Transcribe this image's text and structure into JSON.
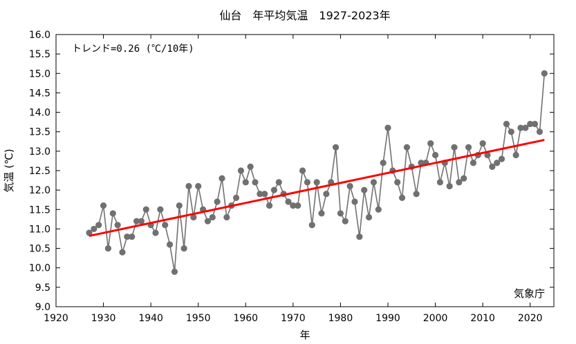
{
  "chart_data": {
    "type": "line",
    "title": "仙台　年平均気温　1927-2023年",
    "xlabel": "年",
    "ylabel": "気温 (℃)",
    "xlim": [
      1920,
      2025
    ],
    "ylim": [
      9.0,
      16.0
    ],
    "xticks": [
      1920,
      1930,
      1940,
      1950,
      1960,
      1970,
      1980,
      1990,
      2000,
      2010,
      2020
    ],
    "yticks": [
      "9.0",
      "9.5",
      "10.0",
      "10.5",
      "11.0",
      "11.5",
      "12.0",
      "12.5",
      "13.0",
      "13.5",
      "14.0",
      "14.5",
      "15.0",
      "15.5",
      "16.0"
    ],
    "grid": false,
    "annotation": "トレンド=0.26 (℃/10年)",
    "source": "気象庁",
    "colors": {
      "series": "#707070",
      "trend": "#ff0000"
    },
    "series": [
      {
        "x": [
          1927,
          1928,
          1929,
          1930,
          1931,
          1932,
          1933,
          1934,
          1935,
          1936,
          1937,
          1938,
          1939,
          1940,
          1941,
          1942,
          1943,
          1944,
          1945,
          1946,
          1947,
          1948,
          1949,
          1950,
          1951,
          1952,
          1953,
          1954,
          1955,
          1956,
          1957,
          1958,
          1959,
          1960,
          1961,
          1962,
          1963,
          1964,
          1965,
          1966,
          1967,
          1968,
          1969,
          1970,
          1971,
          1972,
          1973,
          1974,
          1975,
          1976,
          1977,
          1978,
          1979,
          1980,
          1981,
          1982,
          1983,
          1984,
          1985,
          1986,
          1987,
          1988,
          1989,
          1990,
          1991,
          1992,
          1993,
          1994,
          1995,
          1996,
          1997,
          1998,
          1999,
          2000,
          2001,
          2002,
          2003,
          2004,
          2005,
          2006,
          2007,
          2008,
          2009,
          2010,
          2011,
          2012,
          2013,
          2014,
          2015,
          2016,
          2017,
          2018,
          2019,
          2020,
          2021,
          2022,
          2023
        ],
        "y": [
          10.9,
          11.0,
          11.1,
          11.6,
          10.5,
          11.4,
          11.1,
          10.4,
          10.8,
          10.8,
          11.2,
          11.2,
          11.5,
          11.1,
          10.9,
          11.5,
          11.1,
          10.6,
          9.9,
          11.6,
          10.5,
          12.1,
          11.3,
          12.1,
          11.5,
          11.2,
          11.3,
          11.7,
          12.3,
          11.3,
          11.6,
          11.8,
          12.5,
          12.2,
          12.6,
          12.2,
          11.9,
          11.9,
          11.6,
          12.0,
          12.2,
          11.9,
          11.7,
          11.6,
          11.6,
          12.5,
          12.2,
          11.1,
          12.2,
          11.4,
          11.9,
          12.2,
          13.1,
          11.4,
          11.2,
          12.1,
          11.7,
          10.8,
          12.0,
          11.3,
          12.2,
          11.5,
          12.7,
          13.6,
          12.5,
          12.2,
          11.8,
          13.1,
          12.6,
          11.9,
          12.7,
          12.7,
          13.2,
          12.9,
          12.2,
          12.7,
          12.1,
          13.1,
          12.2,
          12.3,
          13.1,
          12.7,
          12.9,
          13.2,
          12.9,
          12.6,
          12.7,
          12.8,
          13.7,
          13.5,
          12.9,
          13.6,
          13.6,
          13.7,
          13.7,
          13.5,
          15.0
        ]
      }
    ],
    "trend": {
      "x": [
        1927,
        2023
      ],
      "y": [
        10.82,
        13.29
      ]
    }
  }
}
